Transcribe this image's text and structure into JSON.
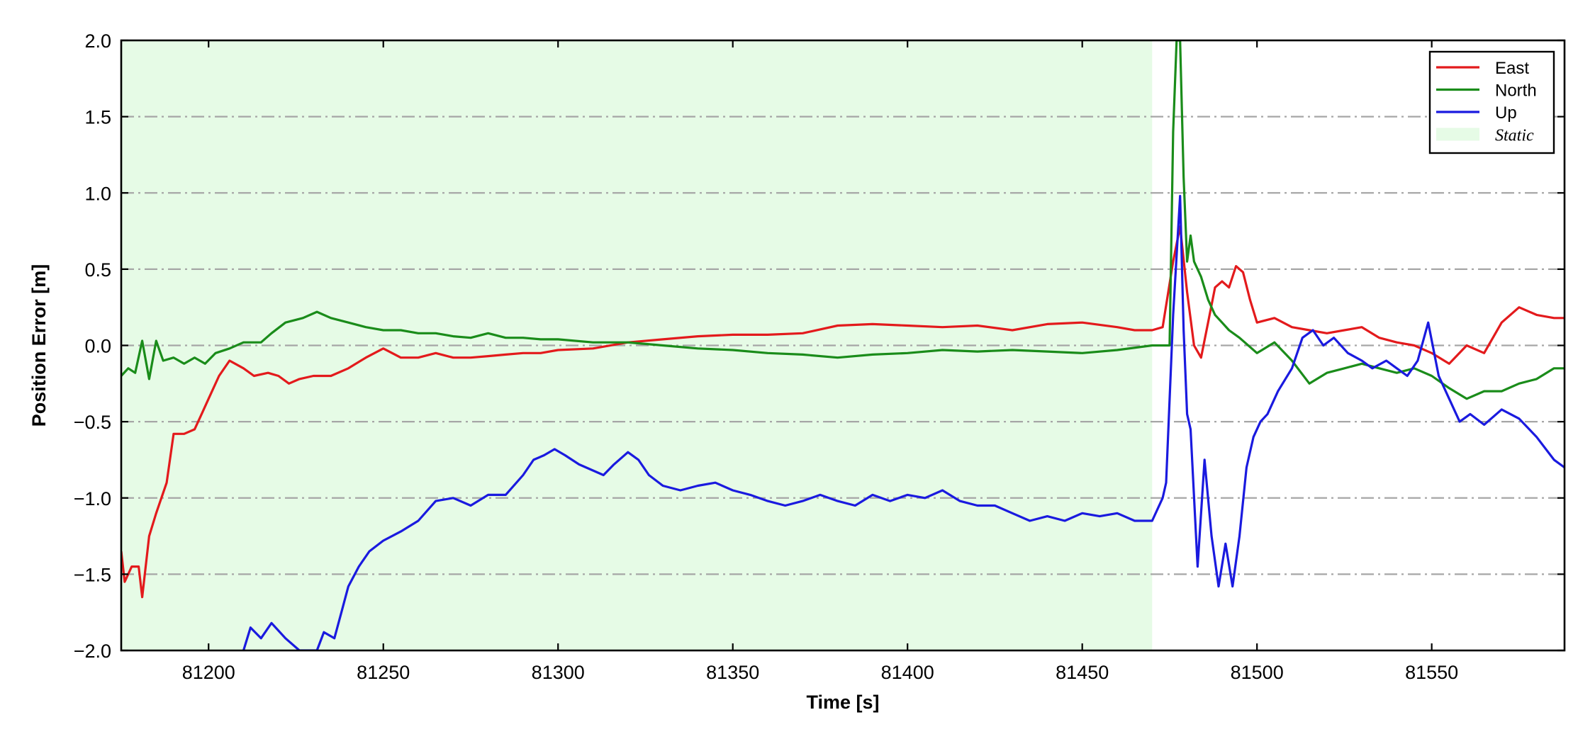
{
  "chart_data": {
    "type": "line",
    "title": "",
    "xlabel": "Time [s]",
    "ylabel": "Position Error [m]",
    "xlim": [
      81175,
      81588
    ],
    "ylim": [
      -2.0,
      2.0
    ],
    "x_ticks": [
      81200,
      81250,
      81300,
      81350,
      81400,
      81450,
      81500,
      81550
    ],
    "y_ticks": [
      -2.0,
      -1.5,
      -1.0,
      -0.5,
      0.0,
      0.5,
      1.0,
      1.5,
      2.0
    ],
    "x_tick_labels": [
      "81200",
      "81250",
      "81300",
      "81350",
      "81400",
      "81450",
      "81500",
      "81550"
    ],
    "y_tick_labels": [
      "−2.0",
      "−1.5",
      "−1.0",
      "−0.5",
      "0.0",
      "0.5",
      "1.0",
      "1.5",
      "2.0"
    ],
    "grid": "horizontal dash-dot",
    "legend_position": "top-right",
    "shaded_region": {
      "name": "Static",
      "x": [
        81175,
        81470
      ],
      "color": "#e6fbe6"
    },
    "series": [
      {
        "name": "East",
        "color": "#e31a1c",
        "points": [
          [
            81175,
            -1.35
          ],
          [
            81176,
            -1.55
          ],
          [
            81178,
            -1.45
          ],
          [
            81180,
            -1.45
          ],
          [
            81181,
            -1.65
          ],
          [
            81183,
            -1.25
          ],
          [
            81185,
            -1.1
          ],
          [
            81188,
            -0.9
          ],
          [
            81190,
            -0.58
          ],
          [
            81193,
            -0.58
          ],
          [
            81196,
            -0.55
          ],
          [
            81198,
            -0.45
          ],
          [
            81200,
            -0.35
          ],
          [
            81203,
            -0.2
          ],
          [
            81206,
            -0.1
          ],
          [
            81210,
            -0.15
          ],
          [
            81213,
            -0.2
          ],
          [
            81217,
            -0.18
          ],
          [
            81220,
            -0.2
          ],
          [
            81223,
            -0.25
          ],
          [
            81226,
            -0.22
          ],
          [
            81230,
            -0.2
          ],
          [
            81235,
            -0.2
          ],
          [
            81240,
            -0.15
          ],
          [
            81245,
            -0.08
          ],
          [
            81250,
            -0.02
          ],
          [
            81255,
            -0.08
          ],
          [
            81260,
            -0.08
          ],
          [
            81265,
            -0.05
          ],
          [
            81270,
            -0.08
          ],
          [
            81275,
            -0.08
          ],
          [
            81280,
            -0.07
          ],
          [
            81285,
            -0.06
          ],
          [
            81290,
            -0.05
          ],
          [
            81295,
            -0.05
          ],
          [
            81300,
            -0.03
          ],
          [
            81310,
            -0.02
          ],
          [
            81320,
            0.02
          ],
          [
            81330,
            0.04
          ],
          [
            81340,
            0.06
          ],
          [
            81350,
            0.07
          ],
          [
            81360,
            0.07
          ],
          [
            81370,
            0.08
          ],
          [
            81380,
            0.13
          ],
          [
            81390,
            0.14
          ],
          [
            81400,
            0.13
          ],
          [
            81410,
            0.12
          ],
          [
            81420,
            0.13
          ],
          [
            81430,
            0.1
          ],
          [
            81440,
            0.14
          ],
          [
            81450,
            0.15
          ],
          [
            81460,
            0.12
          ],
          [
            81465,
            0.1
          ],
          [
            81470,
            0.1
          ],
          [
            81473,
            0.12
          ],
          [
            81476,
            0.55
          ],
          [
            81478,
            0.78
          ],
          [
            81480,
            0.35
          ],
          [
            81482,
            0.0
          ],
          [
            81484,
            -0.08
          ],
          [
            81486,
            0.15
          ],
          [
            81488,
            0.38
          ],
          [
            81490,
            0.42
          ],
          [
            81492,
            0.38
          ],
          [
            81494,
            0.52
          ],
          [
            81496,
            0.48
          ],
          [
            81498,
            0.3
          ],
          [
            81500,
            0.15
          ],
          [
            81505,
            0.18
          ],
          [
            81510,
            0.12
          ],
          [
            81515,
            0.1
          ],
          [
            81520,
            0.08
          ],
          [
            81525,
            0.1
          ],
          [
            81530,
            0.12
          ],
          [
            81535,
            0.05
          ],
          [
            81540,
            0.02
          ],
          [
            81545,
            0.0
          ],
          [
            81550,
            -0.05
          ],
          [
            81555,
            -0.12
          ],
          [
            81560,
            0.0
          ],
          [
            81565,
            -0.05
          ],
          [
            81570,
            0.15
          ],
          [
            81575,
            0.25
          ],
          [
            81580,
            0.2
          ],
          [
            81585,
            0.18
          ],
          [
            81588,
            0.18
          ]
        ]
      },
      {
        "name": "North",
        "color": "#1a8c1a",
        "points": [
          [
            81175,
            -0.2
          ],
          [
            81177,
            -0.15
          ],
          [
            81179,
            -0.18
          ],
          [
            81181,
            0.03
          ],
          [
            81183,
            -0.22
          ],
          [
            81185,
            0.03
          ],
          [
            81187,
            -0.1
          ],
          [
            81190,
            -0.08
          ],
          [
            81193,
            -0.12
          ],
          [
            81196,
            -0.08
          ],
          [
            81199,
            -0.12
          ],
          [
            81202,
            -0.05
          ],
          [
            81206,
            -0.02
          ],
          [
            81210,
            0.02
          ],
          [
            81215,
            0.02
          ],
          [
            81218,
            0.08
          ],
          [
            81222,
            0.15
          ],
          [
            81227,
            0.18
          ],
          [
            81231,
            0.22
          ],
          [
            81235,
            0.18
          ],
          [
            81240,
            0.15
          ],
          [
            81245,
            0.12
          ],
          [
            81250,
            0.1
          ],
          [
            81255,
            0.1
          ],
          [
            81260,
            0.08
          ],
          [
            81265,
            0.08
          ],
          [
            81270,
            0.06
          ],
          [
            81275,
            0.05
          ],
          [
            81280,
            0.08
          ],
          [
            81285,
            0.05
          ],
          [
            81290,
            0.05
          ],
          [
            81295,
            0.04
          ],
          [
            81300,
            0.04
          ],
          [
            81310,
            0.02
          ],
          [
            81320,
            0.02
          ],
          [
            81330,
            0.0
          ],
          [
            81340,
            -0.02
          ],
          [
            81350,
            -0.03
          ],
          [
            81360,
            -0.05
          ],
          [
            81370,
            -0.06
          ],
          [
            81380,
            -0.08
          ],
          [
            81390,
            -0.06
          ],
          [
            81400,
            -0.05
          ],
          [
            81410,
            -0.03
          ],
          [
            81420,
            -0.04
          ],
          [
            81430,
            -0.03
          ],
          [
            81440,
            -0.04
          ],
          [
            81450,
            -0.05
          ],
          [
            81460,
            -0.03
          ],
          [
            81470,
            0.0
          ],
          [
            81475,
            0.0
          ],
          [
            81476,
            1.4
          ],
          [
            81477,
            2.0
          ],
          [
            81478,
            2.0
          ],
          [
            81479,
            1.1
          ],
          [
            81480,
            0.55
          ],
          [
            81481,
            0.72
          ],
          [
            81482,
            0.55
          ],
          [
            81484,
            0.45
          ],
          [
            81486,
            0.3
          ],
          [
            81488,
            0.2
          ],
          [
            81490,
            0.15
          ],
          [
            81492,
            0.1
          ],
          [
            81495,
            0.05
          ],
          [
            81500,
            -0.05
          ],
          [
            81505,
            0.02
          ],
          [
            81510,
            -0.1
          ],
          [
            81515,
            -0.25
          ],
          [
            81520,
            -0.18
          ],
          [
            81525,
            -0.15
          ],
          [
            81530,
            -0.12
          ],
          [
            81535,
            -0.15
          ],
          [
            81540,
            -0.18
          ],
          [
            81545,
            -0.15
          ],
          [
            81550,
            -0.2
          ],
          [
            81555,
            -0.28
          ],
          [
            81560,
            -0.35
          ],
          [
            81565,
            -0.3
          ],
          [
            81570,
            -0.3
          ],
          [
            81575,
            -0.25
          ],
          [
            81580,
            -0.22
          ],
          [
            81585,
            -0.15
          ],
          [
            81588,
            -0.15
          ]
        ]
      },
      {
        "name": "Up",
        "color": "#1a1adf",
        "points": [
          [
            81210,
            -2.0
          ],
          [
            81212,
            -1.85
          ],
          [
            81215,
            -1.92
          ],
          [
            81218,
            -1.82
          ],
          [
            81222,
            -1.92
          ],
          [
            81226,
            -2.0
          ],
          [
            81231,
            -2.0
          ],
          [
            81233,
            -1.88
          ],
          [
            81236,
            -1.92
          ],
          [
            81238,
            -1.75
          ],
          [
            81240,
            -1.58
          ],
          [
            81243,
            -1.45
          ],
          [
            81246,
            -1.35
          ],
          [
            81250,
            -1.28
          ],
          [
            81255,
            -1.22
          ],
          [
            81260,
            -1.15
          ],
          [
            81265,
            -1.02
          ],
          [
            81270,
            -1.0
          ],
          [
            81275,
            -1.05
          ],
          [
            81280,
            -0.98
          ],
          [
            81285,
            -0.98
          ],
          [
            81290,
            -0.85
          ],
          [
            81293,
            -0.75
          ],
          [
            81296,
            -0.72
          ],
          [
            81299,
            -0.68
          ],
          [
            81302,
            -0.72
          ],
          [
            81306,
            -0.78
          ],
          [
            81310,
            -0.82
          ],
          [
            81313,
            -0.85
          ],
          [
            81316,
            -0.78
          ],
          [
            81320,
            -0.7
          ],
          [
            81323,
            -0.75
          ],
          [
            81326,
            -0.85
          ],
          [
            81330,
            -0.92
          ],
          [
            81335,
            -0.95
          ],
          [
            81340,
            -0.92
          ],
          [
            81345,
            -0.9
          ],
          [
            81350,
            -0.95
          ],
          [
            81355,
            -0.98
          ],
          [
            81360,
            -1.02
          ],
          [
            81365,
            -1.05
          ],
          [
            81370,
            -1.02
          ],
          [
            81375,
            -0.98
          ],
          [
            81380,
            -1.02
          ],
          [
            81385,
            -1.05
          ],
          [
            81390,
            -0.98
          ],
          [
            81395,
            -1.02
          ],
          [
            81400,
            -0.98
          ],
          [
            81405,
            -1.0
          ],
          [
            81410,
            -0.95
          ],
          [
            81415,
            -1.02
          ],
          [
            81420,
            -1.05
          ],
          [
            81425,
            -1.05
          ],
          [
            81430,
            -1.1
          ],
          [
            81435,
            -1.15
          ],
          [
            81440,
            -1.12
          ],
          [
            81445,
            -1.15
          ],
          [
            81450,
            -1.1
          ],
          [
            81455,
            -1.12
          ],
          [
            81460,
            -1.1
          ],
          [
            81465,
            -1.15
          ],
          [
            81470,
            -1.15
          ],
          [
            81473,
            -1.0
          ],
          [
            81474,
            -0.9
          ],
          [
            81476,
            0.2
          ],
          [
            81478,
            0.98
          ],
          [
            81479,
            0.1
          ],
          [
            81480,
            -0.45
          ],
          [
            81481,
            -0.55
          ],
          [
            81483,
            -1.45
          ],
          [
            81485,
            -0.75
          ],
          [
            81487,
            -1.25
          ],
          [
            81489,
            -1.58
          ],
          [
            81491,
            -1.3
          ],
          [
            81493,
            -1.58
          ],
          [
            81495,
            -1.25
          ],
          [
            81497,
            -0.8
          ],
          [
            81499,
            -0.6
          ],
          [
            81501,
            -0.5
          ],
          [
            81503,
            -0.45
          ],
          [
            81506,
            -0.3
          ],
          [
            81510,
            -0.15
          ],
          [
            81513,
            0.05
          ],
          [
            81516,
            0.1
          ],
          [
            81519,
            0.0
          ],
          [
            81522,
            0.05
          ],
          [
            81526,
            -0.05
          ],
          [
            81530,
            -0.1
          ],
          [
            81533,
            -0.15
          ],
          [
            81537,
            -0.1
          ],
          [
            81540,
            -0.15
          ],
          [
            81543,
            -0.2
          ],
          [
            81546,
            -0.1
          ],
          [
            81549,
            0.15
          ],
          [
            81552,
            -0.2
          ],
          [
            81555,
            -0.35
          ],
          [
            81558,
            -0.5
          ],
          [
            81561,
            -0.45
          ],
          [
            81565,
            -0.52
          ],
          [
            81570,
            -0.42
          ],
          [
            81575,
            -0.48
          ],
          [
            81580,
            -0.6
          ],
          [
            81585,
            -0.75
          ],
          [
            81588,
            -0.8
          ]
        ]
      }
    ]
  }
}
